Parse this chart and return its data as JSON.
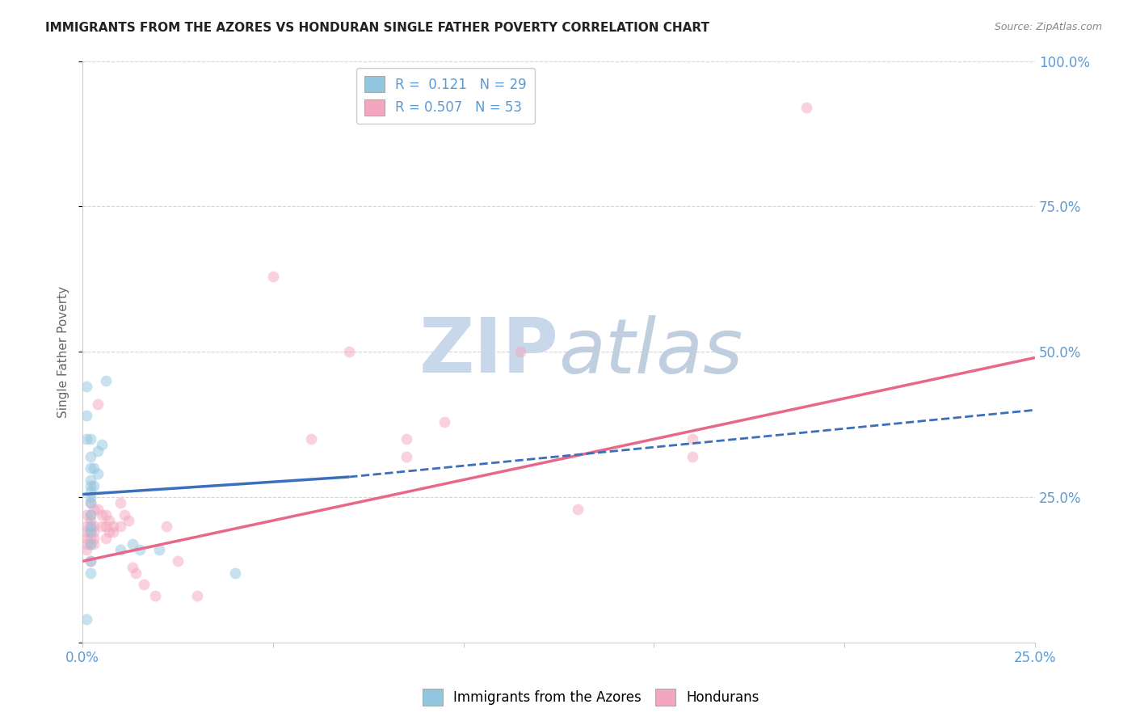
{
  "title": "IMMIGRANTS FROM THE AZORES VS HONDURAN SINGLE FATHER POVERTY CORRELATION CHART",
  "source": "Source: ZipAtlas.com",
  "ylabel": "Single Father Poverty",
  "ytick_vals": [
    0.0,
    0.25,
    0.5,
    0.75,
    1.0
  ],
  "ytick_labels": [
    "",
    "25.0%",
    "50.0%",
    "75.0%",
    "100.0%"
  ],
  "xtick_vals": [
    0.0,
    0.05,
    0.1,
    0.15,
    0.2,
    0.25
  ],
  "xtick_labels": [
    "0.0%",
    "",
    "",
    "",
    "",
    "25.0%"
  ],
  "xlim": [
    0.0,
    0.25
  ],
  "ylim": [
    0.0,
    1.0
  ],
  "watermark_zip": "ZIP",
  "watermark_atlas": "atlas",
  "blue_scatter": [
    [
      0.001,
      0.44
    ],
    [
      0.001,
      0.39
    ],
    [
      0.001,
      0.35
    ],
    [
      0.002,
      0.35
    ],
    [
      0.002,
      0.32
    ],
    [
      0.002,
      0.3
    ],
    [
      0.002,
      0.28
    ],
    [
      0.002,
      0.27
    ],
    [
      0.002,
      0.26
    ],
    [
      0.002,
      0.25
    ],
    [
      0.002,
      0.24
    ],
    [
      0.002,
      0.22
    ],
    [
      0.002,
      0.2
    ],
    [
      0.002,
      0.19
    ],
    [
      0.002,
      0.17
    ],
    [
      0.002,
      0.14
    ],
    [
      0.002,
      0.12
    ],
    [
      0.003,
      0.3
    ],
    [
      0.003,
      0.27
    ],
    [
      0.004,
      0.33
    ],
    [
      0.004,
      0.29
    ],
    [
      0.005,
      0.34
    ],
    [
      0.006,
      0.45
    ],
    [
      0.01,
      0.16
    ],
    [
      0.013,
      0.17
    ],
    [
      0.015,
      0.16
    ],
    [
      0.02,
      0.16
    ],
    [
      0.04,
      0.12
    ],
    [
      0.001,
      0.04
    ]
  ],
  "pink_scatter": [
    [
      0.001,
      0.22
    ],
    [
      0.001,
      0.2
    ],
    [
      0.001,
      0.19
    ],
    [
      0.001,
      0.18
    ],
    [
      0.001,
      0.17
    ],
    [
      0.001,
      0.16
    ],
    [
      0.002,
      0.24
    ],
    [
      0.002,
      0.22
    ],
    [
      0.002,
      0.21
    ],
    [
      0.002,
      0.2
    ],
    [
      0.002,
      0.19
    ],
    [
      0.002,
      0.18
    ],
    [
      0.002,
      0.17
    ],
    [
      0.002,
      0.14
    ],
    [
      0.003,
      0.23
    ],
    [
      0.003,
      0.2
    ],
    [
      0.003,
      0.19
    ],
    [
      0.003,
      0.18
    ],
    [
      0.003,
      0.17
    ],
    [
      0.004,
      0.41
    ],
    [
      0.004,
      0.23
    ],
    [
      0.005,
      0.22
    ],
    [
      0.005,
      0.2
    ],
    [
      0.006,
      0.22
    ],
    [
      0.006,
      0.2
    ],
    [
      0.006,
      0.18
    ],
    [
      0.007,
      0.21
    ],
    [
      0.007,
      0.19
    ],
    [
      0.008,
      0.2
    ],
    [
      0.008,
      0.19
    ],
    [
      0.01,
      0.24
    ],
    [
      0.01,
      0.2
    ],
    [
      0.011,
      0.22
    ],
    [
      0.012,
      0.21
    ],
    [
      0.013,
      0.13
    ],
    [
      0.014,
      0.12
    ],
    [
      0.016,
      0.1
    ],
    [
      0.019,
      0.08
    ],
    [
      0.022,
      0.2
    ],
    [
      0.025,
      0.14
    ],
    [
      0.03,
      0.08
    ],
    [
      0.05,
      0.63
    ],
    [
      0.06,
      0.35
    ],
    [
      0.07,
      0.5
    ],
    [
      0.085,
      0.35
    ],
    [
      0.085,
      0.32
    ],
    [
      0.095,
      0.38
    ],
    [
      0.115,
      0.5
    ],
    [
      0.13,
      0.23
    ],
    [
      0.16,
      0.35
    ],
    [
      0.16,
      0.32
    ],
    [
      0.19,
      0.92
    ]
  ],
  "blue_line_solid": [
    [
      0.0,
      0.255
    ],
    [
      0.07,
      0.285
    ]
  ],
  "blue_line_dashed": [
    [
      0.07,
      0.285
    ],
    [
      0.25,
      0.4
    ]
  ],
  "pink_line": [
    [
      0.0,
      0.14
    ],
    [
      0.25,
      0.49
    ]
  ],
  "scatter_alpha": 0.5,
  "scatter_size": 100,
  "blue_color": "#92c5de",
  "pink_color": "#f4a6be",
  "blue_line_color": "#3b6fbd",
  "pink_line_color": "#e8688a",
  "background_color": "#ffffff",
  "grid_color": "#cccccc",
  "title_color": "#222222",
  "source_color": "#888888",
  "axis_tick_color": "#5b9bd5",
  "ylabel_color": "#666666"
}
